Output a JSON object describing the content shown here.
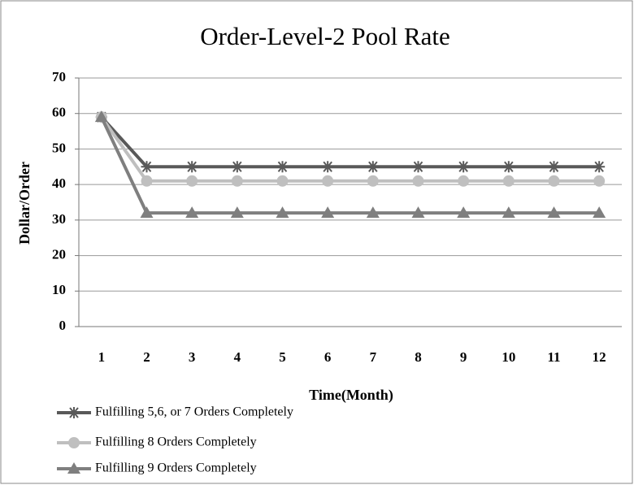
{
  "chart_data": {
    "type": "line",
    "title": "Order-Level-2 Pool Rate",
    "x_label": "Time(Month)",
    "y_label": "Dollar/Order",
    "categories": [
      "1",
      "2",
      "3",
      "4",
      "5",
      "6",
      "7",
      "8",
      "9",
      "10",
      "11",
      "12"
    ],
    "series": [
      {
        "name": "Fulfilling 5,6, or 7 Orders Completely",
        "color": "#595959",
        "marker": "asterisk",
        "values": [
          59,
          45,
          45,
          45,
          45,
          45,
          45,
          45,
          45,
          45,
          45,
          45
        ]
      },
      {
        "name": "Fulfilling 8 Orders Completely",
        "color": "#bfbfbf",
        "marker": "circle",
        "values": [
          59,
          41,
          41,
          41,
          41,
          41,
          41,
          41,
          41,
          41,
          41,
          41
        ]
      },
      {
        "name": "Fulfilling 9 Orders Completely",
        "color": "#7f7f7f",
        "marker": "triangle",
        "values": [
          59,
          32,
          32,
          32,
          32,
          32,
          32,
          32,
          32,
          32,
          32,
          32
        ]
      }
    ],
    "ylim": [
      0,
      70
    ],
    "yticks": [
      0,
      10,
      20,
      30,
      40,
      50,
      60,
      70
    ],
    "grid": true,
    "legend": "bottom-left"
  }
}
